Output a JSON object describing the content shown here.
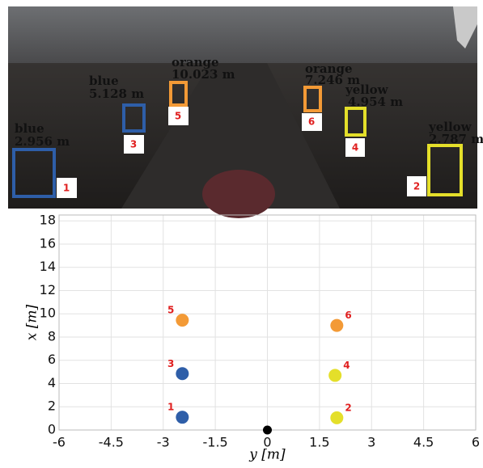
{
  "image": {
    "detections": [
      {
        "id": "1",
        "class": "blue",
        "distance": "2.956 m"
      },
      {
        "id": "2",
        "class": "yellow",
        "distance": "2.787 m"
      },
      {
        "id": "3",
        "class": "blue",
        "distance": "5.128 m"
      },
      {
        "id": "4",
        "class": "yellow",
        "distance": "4.954 m"
      },
      {
        "id": "5",
        "class": "orange",
        "distance": "10.023 m"
      },
      {
        "id": "6",
        "class": "orange",
        "distance": "7.246 m"
      }
    ]
  },
  "chart_data": {
    "type": "scatter",
    "x_label": "y [m]",
    "y_label": "x [m]",
    "xlim": [
      -6,
      6
    ],
    "ylim": [
      0,
      18.5
    ],
    "xticks": [
      -6,
      -4.5,
      -3,
      -1.5,
      0,
      1.5,
      3,
      4.5,
      6
    ],
    "yticks": [
      0,
      2,
      4,
      6,
      8,
      10,
      12,
      14,
      16,
      18
    ],
    "grid": true,
    "points": [
      {
        "label": "1",
        "x": -2.45,
        "y": 1.1,
        "color": "#2e5ea8"
      },
      {
        "label": "2",
        "x": 2.0,
        "y": 1.05,
        "color": "#e4df2a"
      },
      {
        "label": "3",
        "x": -2.45,
        "y": 4.85,
        "color": "#2e5ea8"
      },
      {
        "label": "4",
        "x": 1.95,
        "y": 4.7,
        "color": "#e4df2a"
      },
      {
        "label": "5",
        "x": -2.45,
        "y": 9.45,
        "color": "#f39a36"
      },
      {
        "label": "6",
        "x": 2.0,
        "y": 9.0,
        "color": "#f39a36"
      },
      {
        "x": 0,
        "y": 0,
        "color": "#000000"
      }
    ]
  }
}
